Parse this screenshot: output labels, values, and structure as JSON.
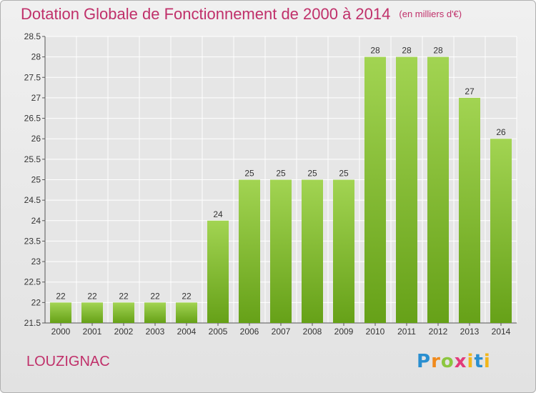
{
  "header": {
    "title": "Dotation Globale de Fonctionnement de 2000 à 2014",
    "unit": "(en milliers d'€)"
  },
  "commune": "LOUZIGNAC",
  "logo": {
    "letters": [
      "P",
      "r",
      "o",
      "x",
      "i",
      "t",
      "i"
    ]
  },
  "colors": {
    "title": "#c0306a",
    "bar_top": "#9fd24e",
    "bar_bottom": "#6aa51c"
  },
  "chart_data": {
    "type": "bar",
    "title": "Dotation Globale de Fonctionnement de 2000 à 2014",
    "subtitle": "(en milliers d'€)",
    "xlabel": "",
    "ylabel": "",
    "categories": [
      "2000",
      "2001",
      "2002",
      "2003",
      "2004",
      "2005",
      "2006",
      "2007",
      "2008",
      "2009",
      "2010",
      "2011",
      "2012",
      "2013",
      "2014"
    ],
    "values": [
      22,
      22,
      22,
      22,
      22,
      24,
      25,
      25,
      25,
      25,
      28,
      28,
      28,
      27,
      26
    ],
    "ylim": [
      21.5,
      28.5
    ],
    "yticks": [
      "21.5",
      "22",
      "22.5",
      "23",
      "23.5",
      "24",
      "24.5",
      "25",
      "25.5",
      "26",
      "26.5",
      "27",
      "27.5",
      "28",
      "28.5"
    ],
    "grid": true,
    "legend": "none"
  }
}
